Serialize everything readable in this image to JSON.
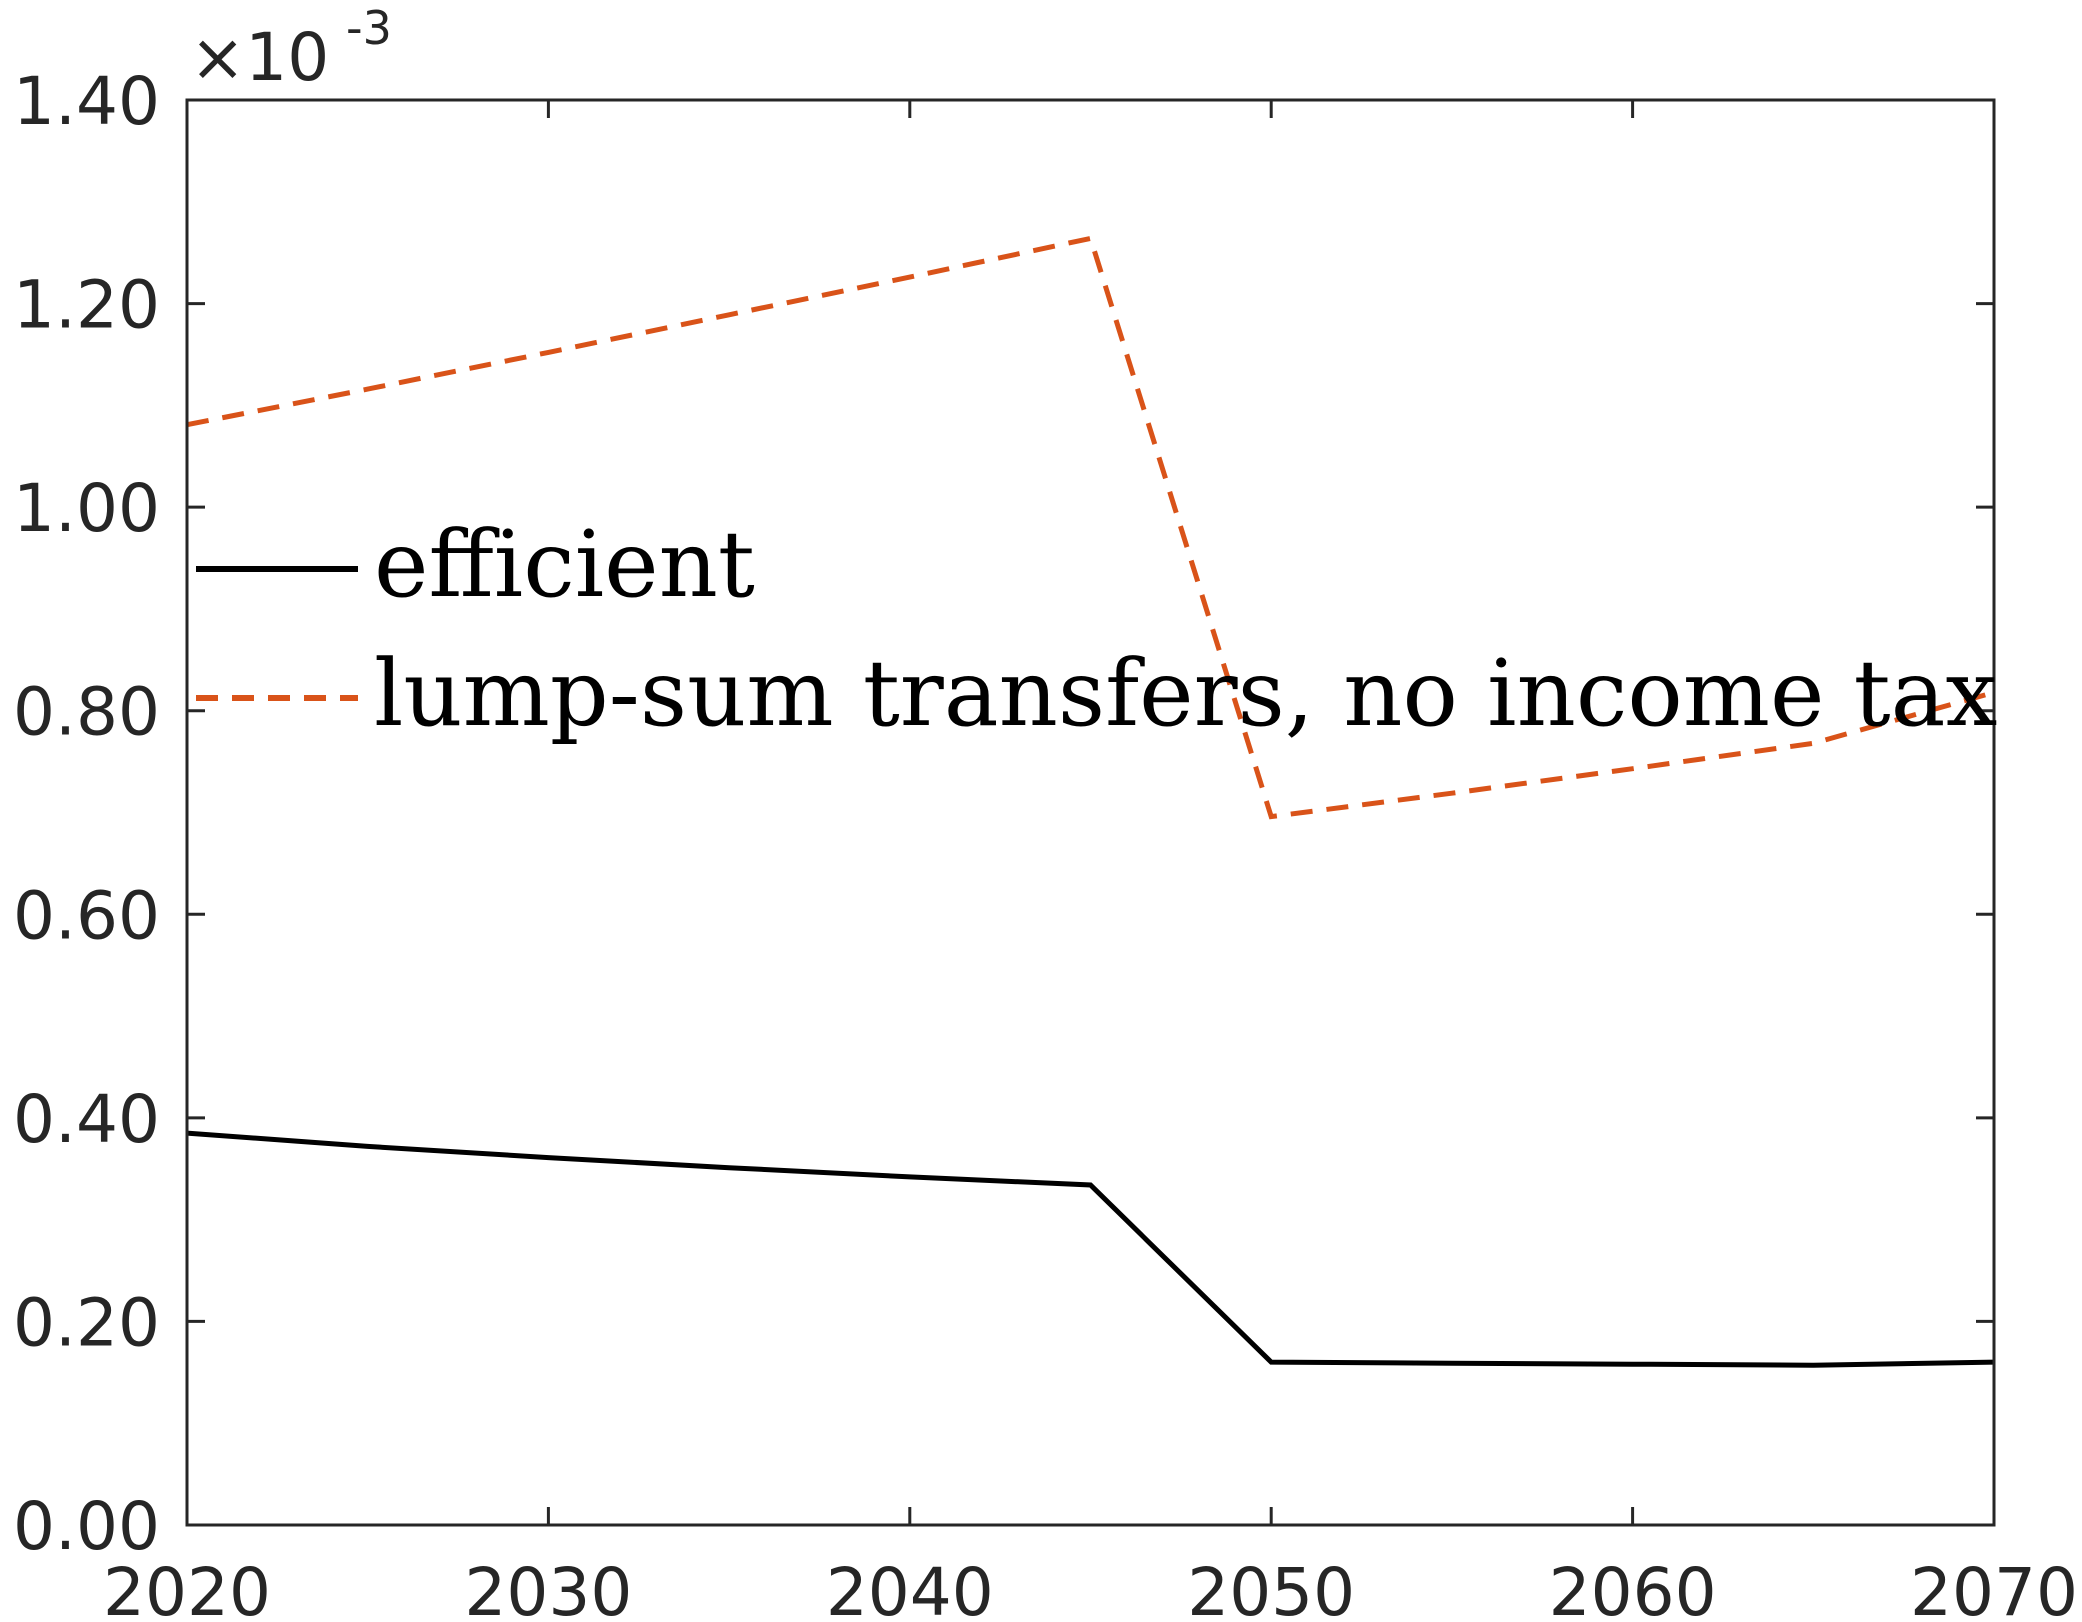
{
  "chart_data": {
    "type": "line",
    "title": "",
    "xlabel": "",
    "ylabel": "",
    "xlim": [
      2020,
      2070
    ],
    "ylim": [
      0.0,
      1.4
    ],
    "y_exponent_label": "×10",
    "y_exponent_power": "-3",
    "x_ticks": [
      2020,
      2030,
      2040,
      2050,
      2060,
      2070
    ],
    "x_tick_labels": [
      "2020",
      "2030",
      "2040",
      "2050",
      "2060",
      "2070"
    ],
    "y_ticks": [
      0.0,
      0.2,
      0.4,
      0.6,
      0.8,
      1.0,
      1.2,
      1.4
    ],
    "y_tick_labels": [
      "0.00",
      "0.20",
      "0.40",
      "0.60",
      "0.80",
      "1.00",
      "1.20",
      "1.40"
    ],
    "grid": false,
    "legend_position": "center-left",
    "series": [
      {
        "name": "efficient",
        "color": "#000000",
        "style": "solid",
        "x": [
          2020,
          2025,
          2030,
          2035,
          2040,
          2045,
          2050,
          2055,
          2060,
          2065,
          2070
        ],
        "y": [
          0.385,
          0.372,
          0.361,
          0.351,
          0.342,
          0.334,
          0.16,
          0.159,
          0.158,
          0.157,
          0.16
        ]
      },
      {
        "name": "lump-sum transfers, no income tax",
        "color": "#D95319",
        "style": "dashed",
        "x": [
          2020,
          2025,
          2030,
          2035,
          2040,
          2045,
          2050,
          2055,
          2060,
          2065,
          2070
        ],
        "y": [
          1.081,
          1.116,
          1.152,
          1.189,
          1.226,
          1.264,
          0.696,
          0.719,
          0.743,
          0.768,
          0.818
        ]
      }
    ]
  }
}
